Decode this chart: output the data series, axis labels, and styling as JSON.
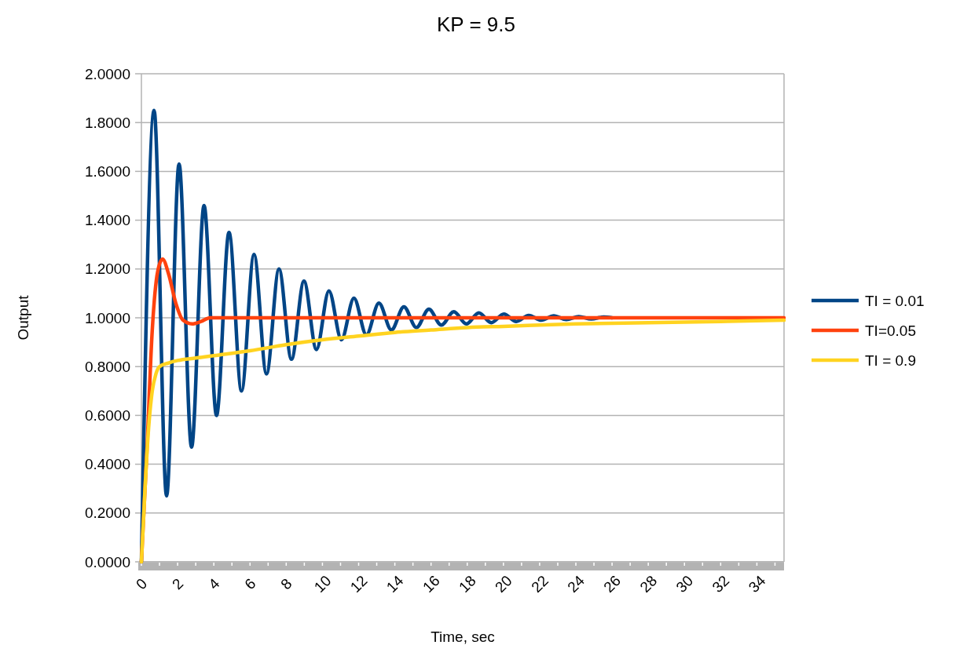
{
  "chart_data": {
    "type": "line",
    "title": "KP = 9.5",
    "xlabel": "Time, sec",
    "ylabel": "Output",
    "xlim": [
      0,
      35.5
    ],
    "xticks": [
      0,
      2,
      4,
      6,
      8,
      10,
      12,
      14,
      16,
      18,
      20,
      22,
      24,
      26,
      28,
      30,
      32,
      34
    ],
    "ylim": [
      0,
      2
    ],
    "yticks": [
      {
        "value": 0,
        "label": "0.0000"
      },
      {
        "value": 0.2,
        "label": "0.2000"
      },
      {
        "value": 0.4,
        "label": "0.4000"
      },
      {
        "value": 0.6,
        "label": "0.6000"
      },
      {
        "value": 0.8,
        "label": "0.8000"
      },
      {
        "value": 1,
        "label": "1.0000"
      },
      {
        "value": 1.2,
        "label": "1.2000"
      },
      {
        "value": 1.4,
        "label": "1.4000"
      },
      {
        "value": 1.6,
        "label": "1.6000"
      },
      {
        "value": 1.8,
        "label": "1.8000"
      },
      {
        "value": 2,
        "label": "2.0000"
      }
    ],
    "grid": "y",
    "legend": "right",
    "marker": "none",
    "line_style": "solid",
    "series": [
      {
        "name": "TI = 0.01",
        "color": "#004586",
        "x": [
          0,
          0.7,
          1.39,
          2.08,
          2.77,
          3.46,
          4.15,
          4.84,
          5.53,
          6.22,
          6.91,
          7.6,
          8.29,
          8.98,
          9.67,
          10.36,
          11.05,
          11.74,
          12.43,
          13.12,
          13.81,
          14.5,
          15.19,
          15.88,
          16.57,
          17.26,
          17.95,
          18.64,
          19.33,
          20.02,
          20.71,
          21.4,
          22.09,
          22.78,
          23.47,
          24.16,
          24.85,
          25.54,
          26
        ],
        "values": [
          0,
          1.85,
          0.27,
          1.63,
          0.47,
          1.46,
          0.6,
          1.35,
          0.7,
          1.26,
          0.77,
          1.2,
          0.83,
          1.15,
          0.87,
          1.11,
          0.91,
          1.08,
          0.93,
          1.06,
          0.95,
          1.045,
          0.96,
          1.035,
          0.97,
          1.025,
          0.975,
          1.02,
          0.98,
          1.015,
          0.985,
          1.01,
          0.99,
          1.008,
          0.993,
          1.005,
          0.995,
          1.003,
          1
        ]
      },
      {
        "name": "TI=0.05",
        "color": "#ff420e",
        "x": [
          0,
          0.3,
          0.6,
          0.9,
          1.17,
          1.5,
          1.9,
          2.3,
          2.8,
          3.3,
          3.8,
          35.5
        ],
        "values": [
          0,
          0.45,
          0.95,
          1.19,
          1.24,
          1.18,
          1.06,
          0.99,
          0.975,
          0.985,
          1,
          1
        ]
      },
      {
        "name": "TI = 0.9",
        "color": "#ffd320",
        "x": [
          0,
          0.2,
          0.4,
          0.6,
          0.8,
          1,
          1.5,
          2,
          3,
          4,
          6,
          8,
          10,
          12,
          14,
          16,
          18,
          20,
          24,
          28,
          32,
          35.5
        ],
        "values": [
          0,
          0.3,
          0.55,
          0.7,
          0.77,
          0.8,
          0.815,
          0.825,
          0.835,
          0.845,
          0.865,
          0.89,
          0.91,
          0.925,
          0.94,
          0.95,
          0.96,
          0.965,
          0.975,
          0.98,
          0.985,
          0.99
        ]
      }
    ]
  }
}
